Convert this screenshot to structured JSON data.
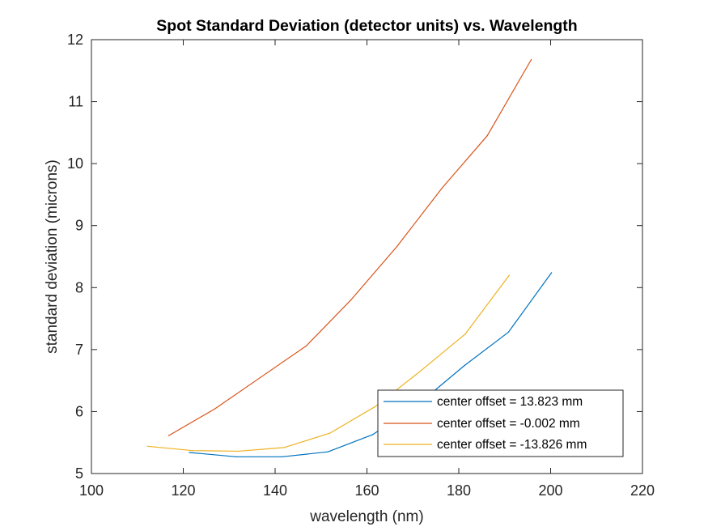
{
  "chart_data": {
    "type": "line",
    "title": "Spot Standard Deviation (detector units) vs. Wavelength",
    "xlabel": "wavelength (nm)",
    "ylabel": "standard deviation (microns)",
    "xlim": [
      100,
      220
    ],
    "ylim": [
      5,
      12
    ],
    "xticks": [
      100,
      120,
      140,
      160,
      180,
      200,
      220
    ],
    "yticks": [
      5,
      6,
      7,
      8,
      9,
      10,
      11,
      12
    ],
    "grid": false,
    "legend_position": "bottom-right",
    "series": [
      {
        "name": "center offset = 13.823 mm",
        "color": "#0072BD",
        "x": [
          121.3,
          131.5,
          141.5,
          151.5,
          161.3,
          171.2,
          181.2,
          190.8,
          200.2
        ],
        "y": [
          5.34,
          5.27,
          5.27,
          5.35,
          5.63,
          6.12,
          6.74,
          7.28,
          8.24
        ]
      },
      {
        "name": "center offset = -0.002 mm",
        "color": "#D95319",
        "x": [
          116.8,
          126.8,
          136.8,
          146.8,
          156.5,
          166.5,
          176.4,
          186.2,
          195.8
        ],
        "y": [
          5.61,
          6.04,
          6.55,
          7.06,
          7.8,
          8.66,
          9.61,
          10.45,
          11.68
        ]
      },
      {
        "name": "center offset = -13.826 mm",
        "color": "#EDB120",
        "x": [
          112.2,
          122.0,
          132.0,
          142.0,
          151.9,
          161.8,
          171.6,
          181.4,
          191.0
        ],
        "y": [
          5.44,
          5.37,
          5.36,
          5.42,
          5.65,
          6.08,
          6.65,
          7.25,
          8.2
        ]
      }
    ]
  }
}
